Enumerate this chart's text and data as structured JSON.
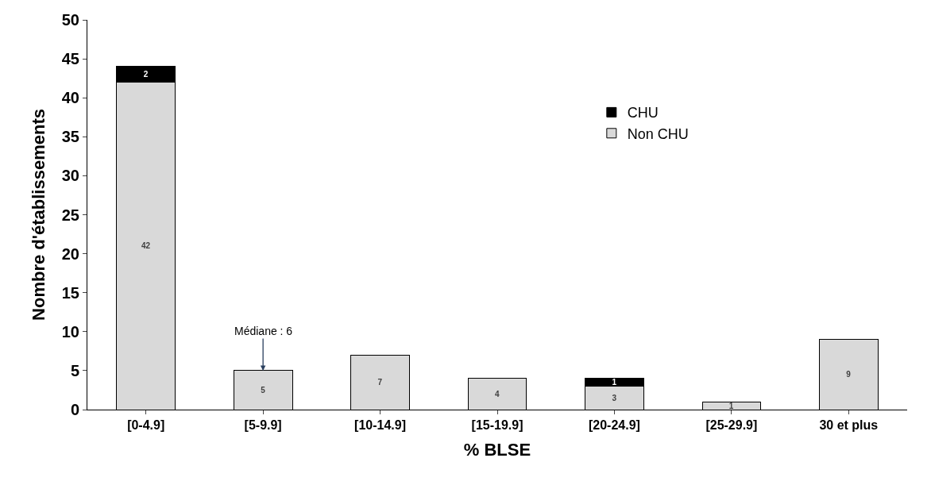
{
  "chart_data": {
    "type": "bar",
    "stacked": true,
    "xlabel": "% BLSE",
    "ylabel": "Nombre d'établissements",
    "categories": [
      "[0-4.9]",
      "[5-9.9]",
      "[10-14.9]",
      "[15-19.9]",
      "[20-24.9]",
      "[25-29.9]",
      "30 et plus"
    ],
    "series": [
      {
        "name": "Non CHU",
        "color": "#d9d9d9",
        "values": [
          42,
          5,
          7,
          4,
          3,
          1,
          9
        ],
        "value_labels": [
          "42",
          "5",
          "7",
          "4",
          "3",
          "1",
          "9"
        ]
      },
      {
        "name": "CHU",
        "color": "#000000",
        "values": [
          2,
          0,
          0,
          0,
          1,
          0,
          0
        ],
        "value_labels": [
          "2",
          null,
          null,
          null,
          "1",
          null,
          null
        ]
      }
    ],
    "ylim": [
      0,
      50
    ],
    "yticks": [
      0,
      5,
      10,
      15,
      20,
      25,
      30,
      35,
      40,
      45,
      50
    ],
    "legend": "top right",
    "annotations": [
      {
        "text": "Médiane : 6",
        "x": "[5-9.9]",
        "y": 5
      }
    ]
  }
}
